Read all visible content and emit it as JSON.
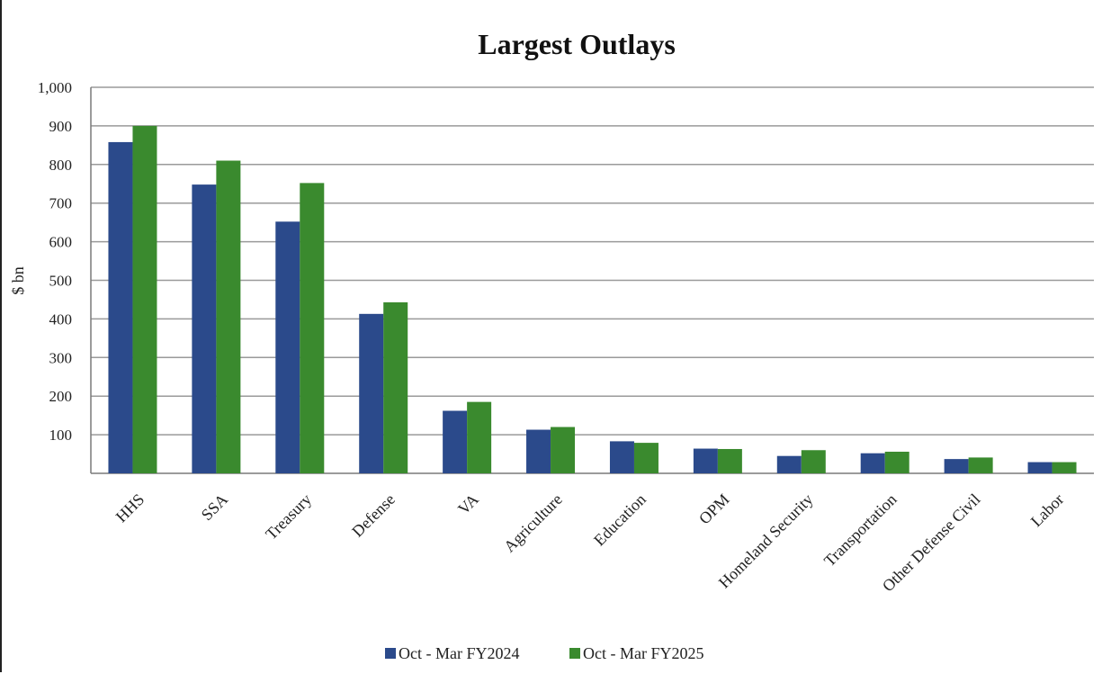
{
  "chart_data": {
    "type": "bar",
    "title": "Largest Outlays",
    "xlabel": "",
    "ylabel": "$ bn",
    "ylim": [
      0,
      1000
    ],
    "yticks": [
      100,
      200,
      300,
      400,
      500,
      600,
      700,
      800,
      900,
      1000
    ],
    "ytick_labels": [
      "100",
      "200",
      "300",
      "400",
      "500",
      "600",
      "700",
      "800",
      "900",
      "1,000"
    ],
    "grid": true,
    "legend_position": "bottom",
    "categories": [
      "HHS",
      "SSA",
      "Treasury",
      "Defense",
      "VA",
      "Agriculture",
      "Education",
      "OPM",
      "Homeland Security",
      "Transportation",
      "Other Defense Civil",
      "Labor"
    ],
    "series": [
      {
        "name": "Oct - Mar FY2024",
        "color": "#2b4a8b",
        "values": [
          858,
          748,
          652,
          413,
          162,
          113,
          83,
          64,
          45,
          52,
          37,
          29
        ]
      },
      {
        "name": "Oct - Mar FY2025",
        "color": "#3a8a2e",
        "values": [
          900,
          810,
          752,
          443,
          185,
          120,
          79,
          63,
          60,
          56,
          41,
          29
        ]
      }
    ]
  }
}
